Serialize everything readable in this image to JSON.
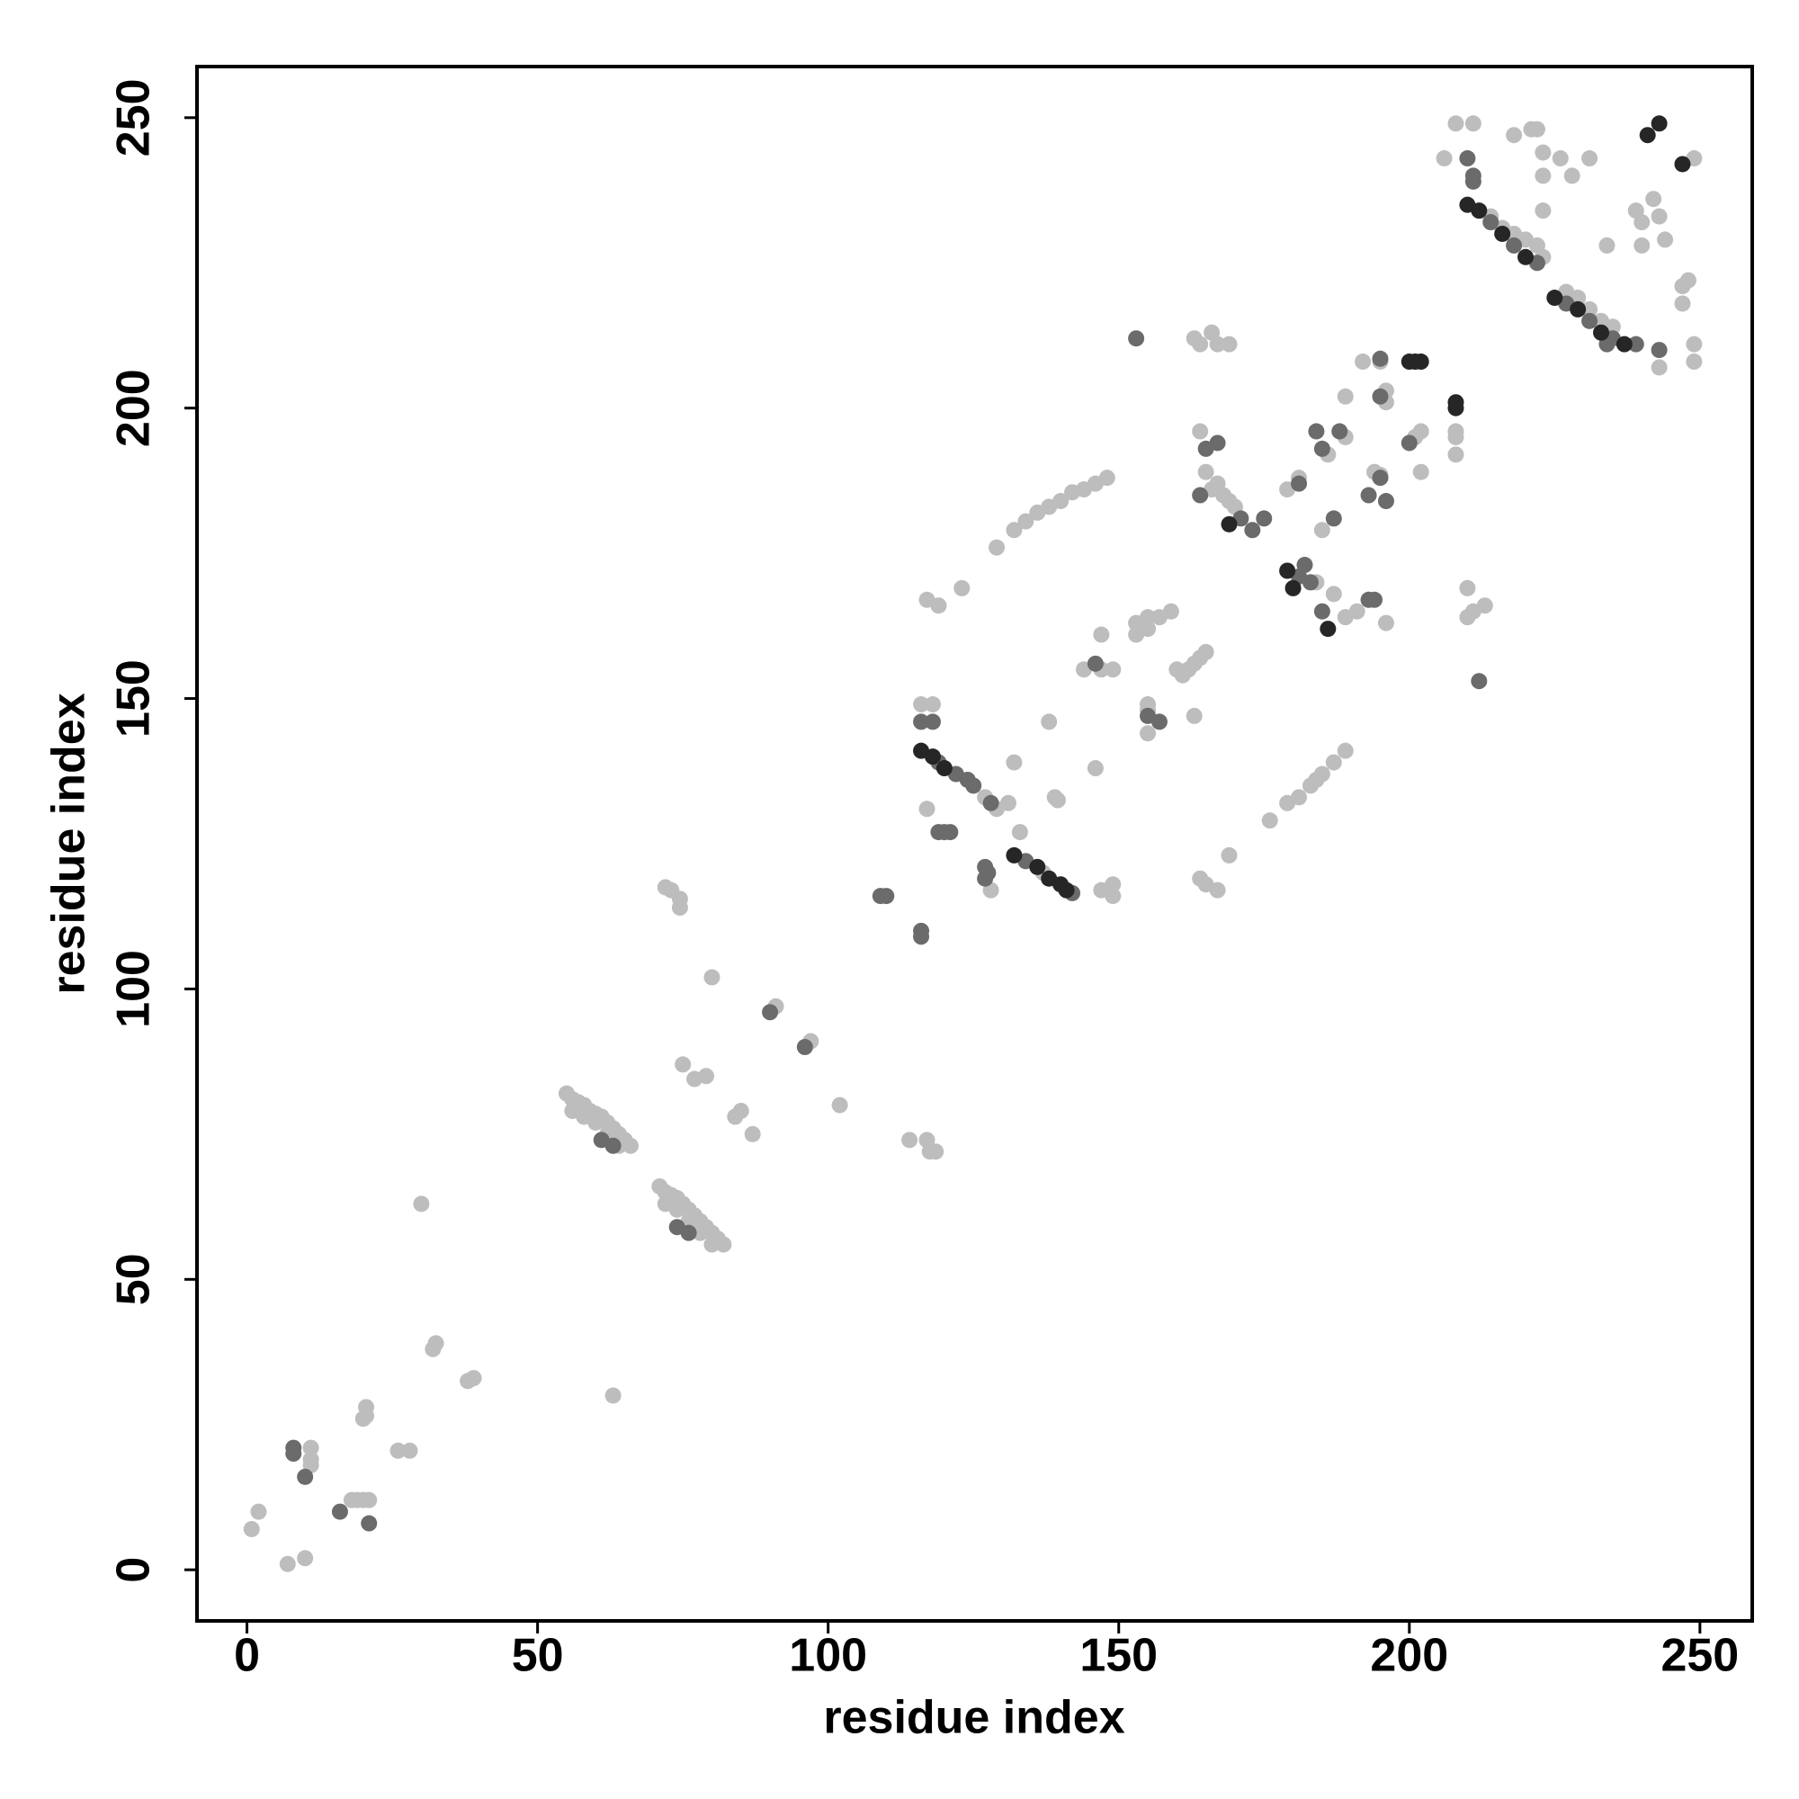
{
  "chart_data": {
    "type": "scatter",
    "x_label": "residue index",
    "y_label": "residue index",
    "xlim": [
      -8.6,
      259
    ],
    "ylim": [
      -8.8,
      258.8
    ],
    "xticks": [
      0,
      50,
      100,
      150,
      200,
      250
    ],
    "yticks": [
      0,
      50,
      100,
      150,
      200,
      250
    ],
    "series": [
      {
        "color": "#bdbdbd",
        "x": [
          0.8,
          2,
          7,
          10,
          11,
          11,
          11,
          18,
          19,
          20,
          21,
          20.5,
          20.5,
          20,
          26,
          28,
          32.5,
          32,
          38,
          39,
          30,
          63,
          55,
          56,
          57,
          58,
          59,
          60,
          61,
          62,
          63,
          64,
          65,
          66,
          56,
          58,
          60,
          62,
          64,
          71,
          72,
          73,
          74,
          75,
          76,
          77,
          78,
          79,
          80,
          81,
          82,
          72,
          74,
          76,
          78,
          80,
          72,
          73,
          74.5,
          74.5,
          80,
          91,
          97,
          102,
          75,
          77,
          79,
          84,
          85,
          87,
          114,
          117,
          117.5,
          118.5,
          116,
          118,
          117,
          119,
          123,
          127,
          129,
          131,
          117,
          128,
          132,
          133,
          137,
          139,
          139.5,
          138,
          146,
          149,
          149,
          147,
          144,
          147,
          149,
          147,
          129,
          132,
          134,
          136,
          138,
          140,
          142,
          144,
          146,
          148,
          153,
          155,
          157,
          159,
          153,
          155,
          155,
          155,
          155,
          163,
          160,
          161,
          162,
          163,
          164,
          165,
          176,
          179,
          181,
          183,
          185,
          187,
          189,
          184,
          169,
          164,
          165,
          167,
          163,
          164,
          166,
          167,
          169,
          164,
          165,
          166,
          167,
          168,
          169,
          170,
          184,
          187,
          189,
          191,
          179,
          181,
          186,
          189,
          185,
          196,
          194,
          195,
          192,
          195,
          189,
          196,
          196,
          201,
          202,
          202,
          208,
          208,
          208,
          210,
          210,
          211,
          213,
          208,
          211,
          206,
          214,
          216,
          218,
          220,
          222,
          223,
          218,
          221,
          222,
          227,
          229,
          231,
          233,
          235,
          243,
          223,
          226,
          228,
          231,
          223,
          223,
          234,
          239,
          240,
          242,
          243,
          244,
          249,
          247,
          248,
          247,
          249,
          249,
          240
        ],
        "values": [
          7,
          10,
          1,
          2,
          21,
          19,
          18,
          12,
          12,
          12,
          12,
          28,
          26.5,
          26,
          20.5,
          20.5,
          39,
          38,
          32.5,
          33,
          63,
          30,
          82,
          81,
          80.5,
          80,
          79,
          78.5,
          78,
          77,
          76,
          75,
          74,
          73,
          79,
          78,
          77,
          75,
          73,
          66,
          65,
          64.5,
          64,
          63,
          62,
          61,
          60,
          59,
          58,
          57,
          56,
          63,
          62,
          60,
          58,
          56,
          117.5,
          117,
          115.5,
          114,
          102,
          97,
          91,
          80,
          87,
          84.5,
          85,
          78,
          79,
          75,
          74,
          74,
          72,
          72,
          149,
          149,
          167,
          166,
          169,
          133,
          131,
          132,
          131,
          117,
          139,
          127,
          120,
          133,
          132.5,
          146,
          138,
          118,
          116,
          117,
          155,
          155,
          155,
          161,
          176,
          179,
          180.5,
          182,
          183,
          184,
          185.5,
          186,
          187,
          188,
          163,
          164,
          164,
          165,
          161,
          162,
          149,
          148,
          144,
          147,
          155,
          154,
          155,
          156,
          157,
          158,
          129,
          132,
          133,
          135,
          137,
          139,
          141,
          136,
          123,
          119,
          118,
          117,
          212,
          211,
          213,
          211,
          211,
          196,
          189,
          186,
          187,
          185,
          184,
          183,
          170,
          168,
          164,
          165,
          186,
          188,
          192,
          195,
          179,
          163,
          189,
          188.5,
          208,
          208,
          202,
          203,
          201,
          195,
          196,
          189,
          195,
          196,
          192,
          169,
          164,
          165,
          166,
          249,
          249,
          243,
          233,
          231,
          230,
          229,
          228,
          226,
          247,
          248,
          248,
          220,
          219,
          217,
          215,
          214,
          207,
          244,
          243,
          240,
          243,
          240,
          234,
          228,
          234,
          232,
          236,
          233,
          229,
          243,
          221,
          222,
          218,
          211,
          208,
          228
        ]
      },
      {
        "color": "#6b6b6b",
        "x": [
          8,
          8,
          10,
          16,
          21,
          61,
          63,
          74,
          76,
          90,
          96,
          109,
          110,
          116,
          116,
          116,
          118,
          119,
          122,
          124,
          125,
          128,
          119,
          120,
          121,
          127,
          127,
          127.5,
          134,
          142,
          146,
          155,
          157,
          153,
          165,
          167,
          164,
          171,
          173,
          175,
          181,
          182,
          183,
          185,
          181,
          185,
          188,
          184,
          187,
          193,
          194,
          193,
          195,
          196,
          195,
          195,
          200,
          210,
          211,
          211,
          214,
          218,
          222,
          227,
          231,
          235,
          234,
          239,
          243,
          212
        ],
        "values": [
          21,
          20,
          16,
          10,
          8,
          74,
          73,
          59,
          58,
          96,
          90,
          116,
          116,
          110,
          109,
          146,
          146,
          139,
          137,
          136,
          135,
          132,
          127,
          127,
          127,
          121,
          119,
          120,
          122,
          116.5,
          156,
          147,
          146,
          212,
          193,
          194,
          185,
          181,
          179,
          181,
          171,
          173,
          170,
          165,
          187,
          193,
          196,
          196,
          181,
          167,
          167,
          185,
          188,
          184,
          208.5,
          202,
          194,
          243,
          240,
          239,
          232,
          228,
          225,
          218,
          215,
          212,
          211,
          211,
          210,
          153
        ]
      },
      {
        "color": "#262626",
        "x": [
          116,
          118,
          120,
          132,
          136,
          138,
          140,
          141,
          169,
          179,
          180,
          186,
          200,
          201,
          202,
          208,
          208,
          210,
          212,
          216,
          220,
          225,
          229,
          233,
          237,
          241,
          243,
          247
        ],
        "values": [
          141,
          140,
          138,
          123,
          121,
          119,
          118,
          117,
          180,
          172,
          169,
          162,
          208,
          208,
          208,
          201,
          200,
          235,
          234,
          230,
          226,
          219,
          217,
          213,
          211,
          247,
          249,
          242
        ]
      }
    ]
  }
}
